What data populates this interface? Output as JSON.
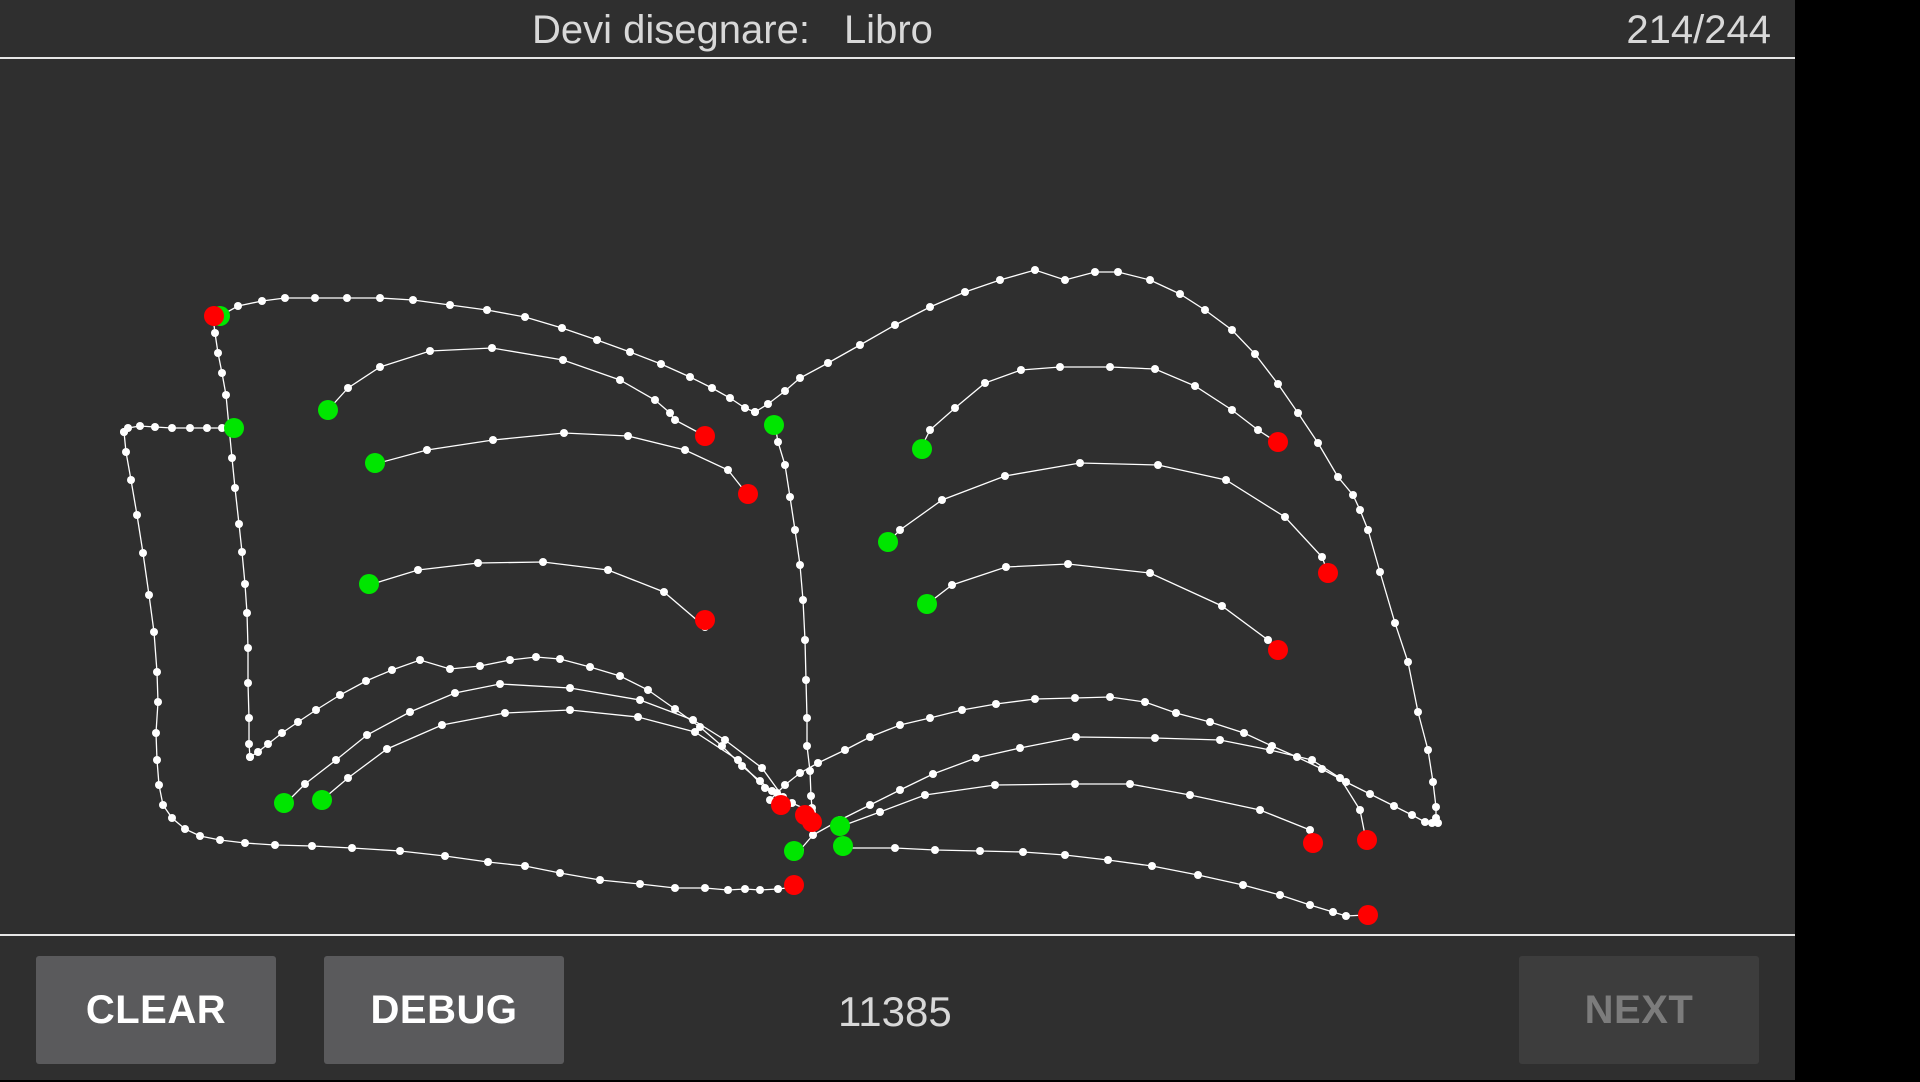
{
  "header": {
    "prompt_label": "Devi disegnare:",
    "target_word": "Libro",
    "progress": "214/244"
  },
  "footer": {
    "clear_label": "CLEAR",
    "debug_label": "DEBUG",
    "score": "11385",
    "next_label": "NEXT"
  },
  "colors": {
    "background": "#2f2f2f",
    "stroke": "#ffffff",
    "start_point": "#00e600",
    "end_point": "#ff0000"
  }
}
